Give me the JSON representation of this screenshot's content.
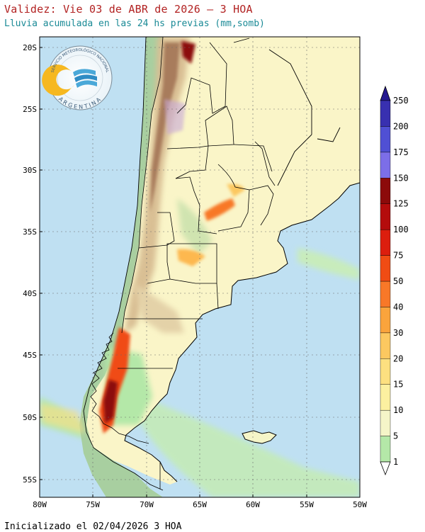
{
  "header": {
    "title": "Validez: Vie 03 de ABR de 2026 – 3 HOA",
    "subtitle": "Lluvia acumulada en las 24 hs previas (mm,somb)"
  },
  "footer": {
    "init_text": "Inicializado el 02/04/2026 3 HOA"
  },
  "logo": {
    "top_text": "SERVICIO METEOROLÓGICO NACIONAL",
    "bottom_text": "ARGENTINA"
  },
  "map": {
    "region": "Argentina",
    "lat_labels": [
      "20S",
      "25S",
      "30S",
      "35S",
      "40S",
      "45S",
      "50S",
      "55S"
    ],
    "lon_labels": [
      "80W",
      "75W",
      "70W",
      "65W",
      "60W",
      "55W",
      "50W"
    ],
    "colors": {
      "ocean": "#bfe0f2",
      "land_plain": "#faf5c8",
      "border": "#000000"
    }
  },
  "colorbar": {
    "labels": [
      "1",
      "5",
      "10",
      "15",
      "20",
      "30",
      "40",
      "50",
      "75",
      "100",
      "125",
      "150",
      "175",
      "200",
      "250"
    ],
    "colors": [
      "#d8f5c8",
      "#b4e8a8",
      "#f5f5c8",
      "#fcf0a0",
      "#fde080",
      "#fcc860",
      "#faa43c",
      "#f87828",
      "#f04c14",
      "#dc1e0e",
      "#b40c0c",
      "#8c0a0a",
      "#7c6ee8",
      "#5050d4",
      "#3830b0",
      "#241890"
    ]
  }
}
